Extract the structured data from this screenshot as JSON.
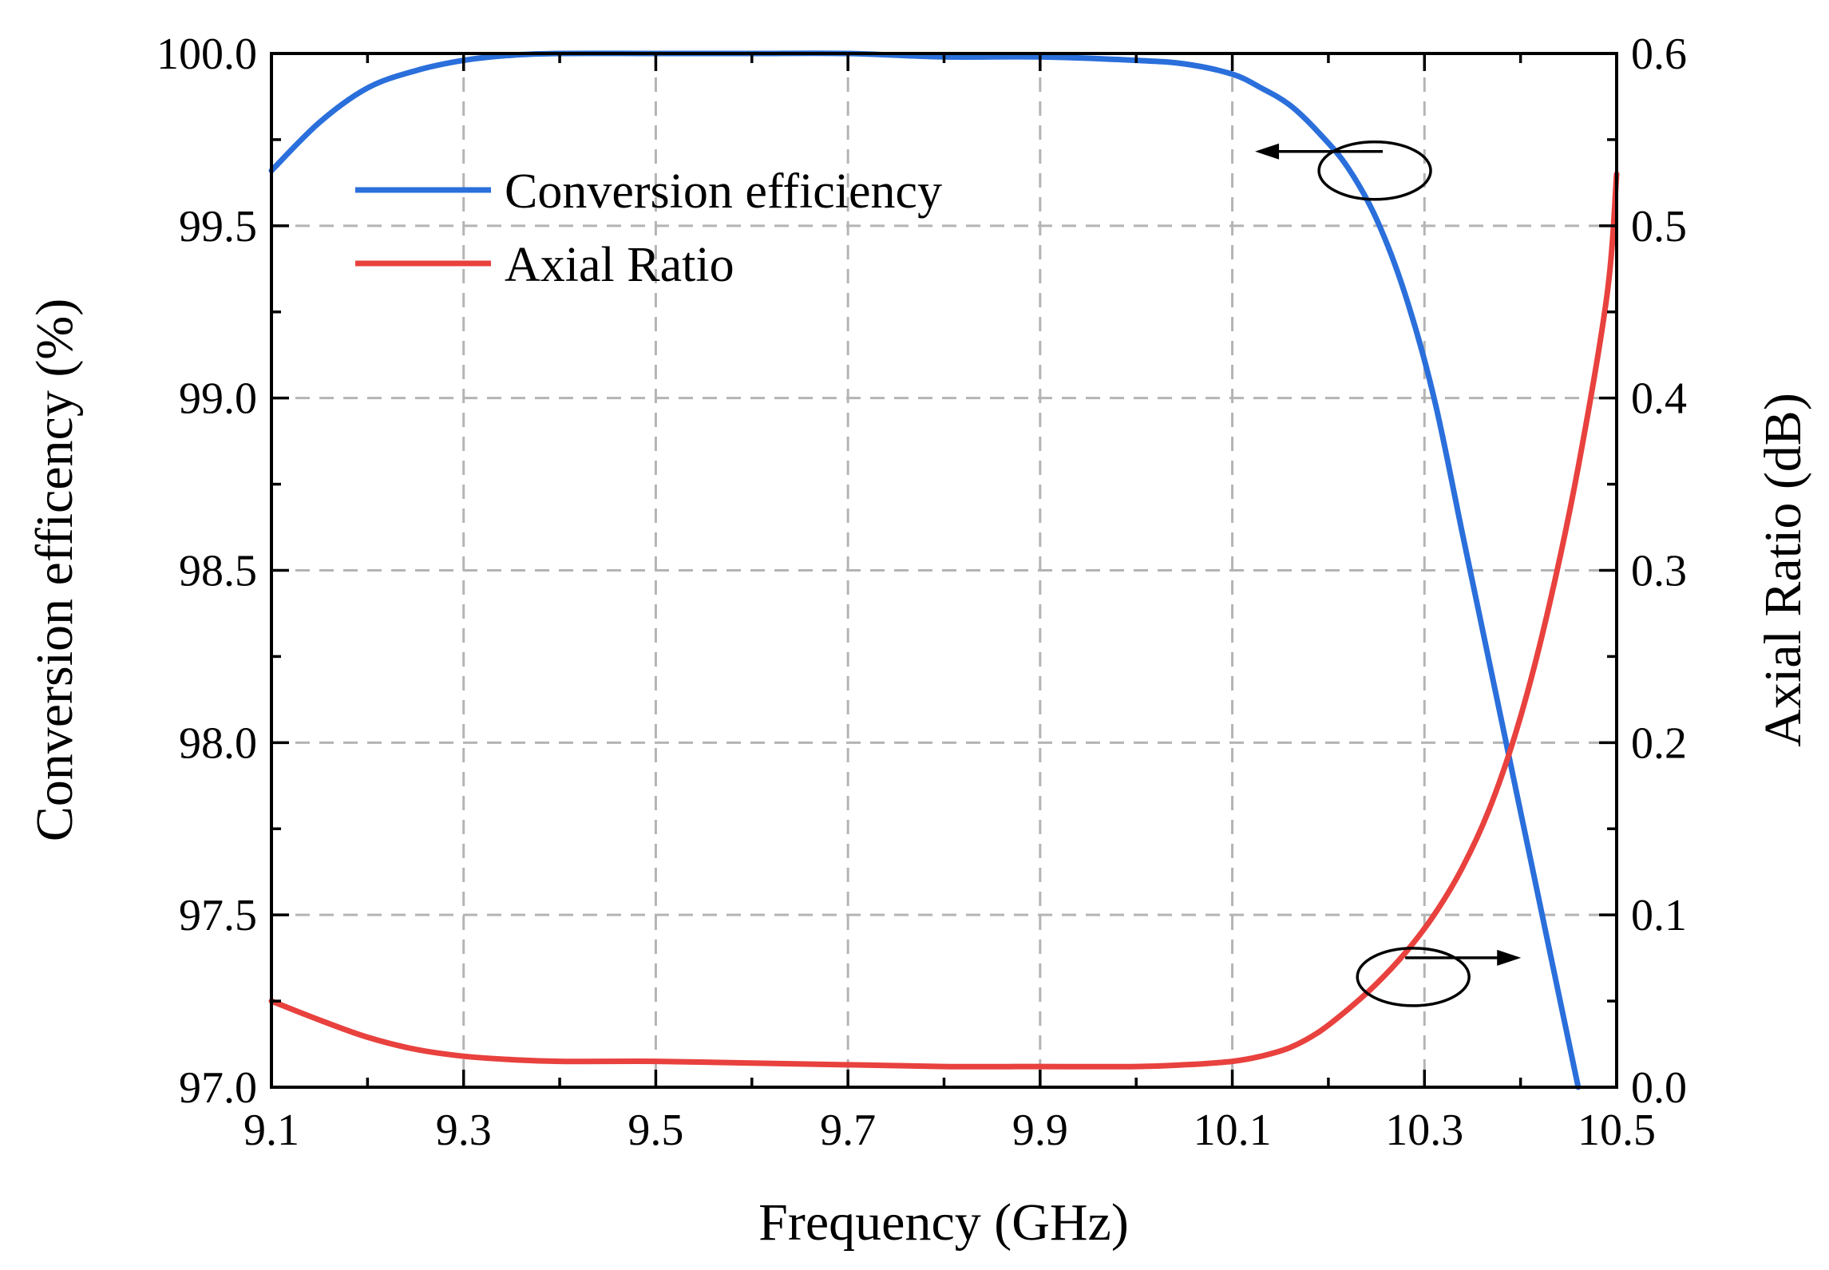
{
  "chart_data": {
    "type": "line",
    "xlabel": "Frequency (GHz)",
    "ylabel_left": "Conversion efficency (%)",
    "ylabel_right": "Axial Ratio (dB)",
    "xlim": [
      9.1,
      10.5
    ],
    "ylim_left": [
      97.0,
      100.0
    ],
    "ylim_right": [
      0.0,
      0.6
    ],
    "xticks": [
      "9.1",
      "9.3",
      "9.5",
      "9.7",
      "9.9",
      "10.1",
      "10.3",
      "10.5"
    ],
    "yticks_left": [
      "97.0",
      "97.5",
      "98.0",
      "98.5",
      "99.0",
      "99.5",
      "100.0"
    ],
    "yticks_right": [
      "0.0",
      "0.1",
      "0.2",
      "0.3",
      "0.4",
      "0.5",
      "0.6"
    ],
    "grid": true,
    "legend_position": "top-left",
    "series": [
      {
        "name": "Conversion efficiency",
        "axis": "left",
        "color": "#2a6fdb",
        "x": [
          9.1,
          9.15,
          9.2,
          9.25,
          9.3,
          9.35,
          9.4,
          9.5,
          9.6,
          9.7,
          9.8,
          9.9,
          10.0,
          10.05,
          10.1,
          10.13,
          10.16,
          10.19,
          10.22,
          10.25,
          10.28,
          10.31,
          10.34,
          10.37,
          10.4,
          10.43,
          10.46
        ],
        "y": [
          99.66,
          99.8,
          99.9,
          99.95,
          99.98,
          99.995,
          100.0,
          100.0,
          100.0,
          100.0,
          99.99,
          99.99,
          99.98,
          99.97,
          99.94,
          99.9,
          99.85,
          99.77,
          99.67,
          99.52,
          99.3,
          99.0,
          98.6,
          98.2,
          97.8,
          97.4,
          97.0
        ]
      },
      {
        "name": "Axial Ratio",
        "axis": "right",
        "color": "#e8413e",
        "x": [
          9.1,
          9.15,
          9.2,
          9.25,
          9.3,
          9.35,
          9.4,
          9.5,
          9.6,
          9.7,
          9.8,
          9.9,
          10.0,
          10.05,
          10.1,
          10.13,
          10.16,
          10.19,
          10.22,
          10.25,
          10.28,
          10.31,
          10.34,
          10.37,
          10.4,
          10.43,
          10.46,
          10.49,
          10.5
        ],
        "y": [
          0.05,
          0.039,
          0.029,
          0.022,
          0.018,
          0.016,
          0.015,
          0.015,
          0.014,
          0.013,
          0.012,
          0.012,
          0.012,
          0.013,
          0.015,
          0.018,
          0.023,
          0.032,
          0.045,
          0.06,
          0.078,
          0.1,
          0.128,
          0.165,
          0.215,
          0.28,
          0.36,
          0.46,
          0.53
        ]
      }
    ],
    "annotations": [
      {
        "type": "ellipse-arrow",
        "points_to": "left-axis",
        "series": "Conversion efficiency",
        "x": 10.24,
        "y_left": 99.66
      },
      {
        "type": "ellipse-arrow",
        "points_to": "right-axis",
        "series": "Axial Ratio",
        "x": 10.28,
        "y_right": 0.064
      }
    ]
  }
}
